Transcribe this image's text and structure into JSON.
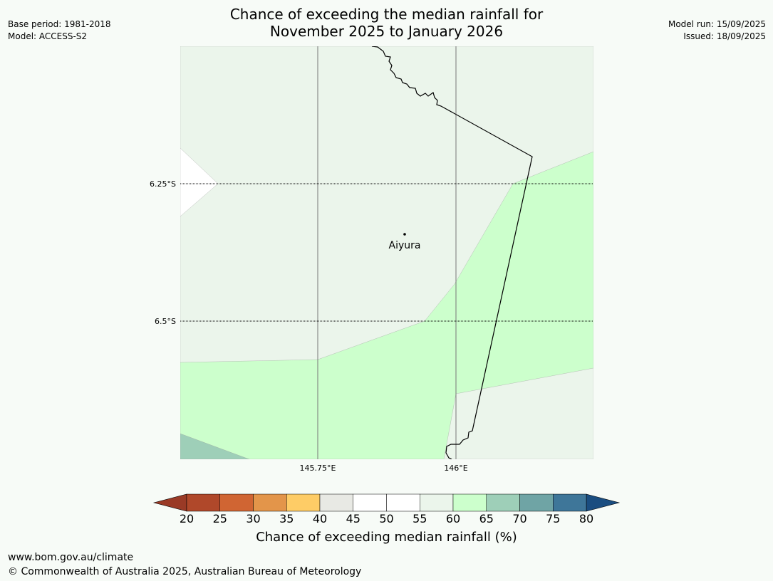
{
  "header": {
    "title_line1": "Chance of exceeding the median rainfall for",
    "title_line2": "November 2025 to January 2026",
    "base_period": "Base period: 1981-2018",
    "model": "Model: ACCESS-S2",
    "model_run": "Model run: 15/09/2025",
    "issued": "Issued: 18/09/2025"
  },
  "map": {
    "lat_labels": [
      "6.25°S",
      "6.5°S"
    ],
    "lon_labels": [
      "145.75°E",
      "146°E"
    ],
    "place": {
      "name": "Aiyura"
    },
    "regions": [
      {
        "band": "55-60",
        "color": "#ebf5eb"
      },
      {
        "band": "60-65",
        "color": "#ccffcc"
      },
      {
        "band": "65-70",
        "color": "#9ecfb8"
      },
      {
        "band": "50-55",
        "color": "#ffffff"
      }
    ]
  },
  "colorbar": {
    "label": "Chance of exceeding median rainfall (%)",
    "ticks": [
      "20",
      "25",
      "30",
      "35",
      "40",
      "45",
      "50",
      "55",
      "60",
      "65",
      "70",
      "75",
      "80"
    ],
    "under_color": "#9a3a26",
    "over_color": "#1a4d80",
    "colors": [
      "#b0482a",
      "#d06533",
      "#e3954a",
      "#fecc66",
      "#e8e9e4",
      "#ffffff",
      "#ffffff",
      "#ebf5eb",
      "#ccffcc",
      "#9ecfb8",
      "#6fa4a5",
      "#3e7699"
    ]
  },
  "footer": {
    "url": "www.bom.gov.au/climate",
    "copyright": "© Commonwealth of Australia 2025, Australian Bureau of Meteorology"
  }
}
